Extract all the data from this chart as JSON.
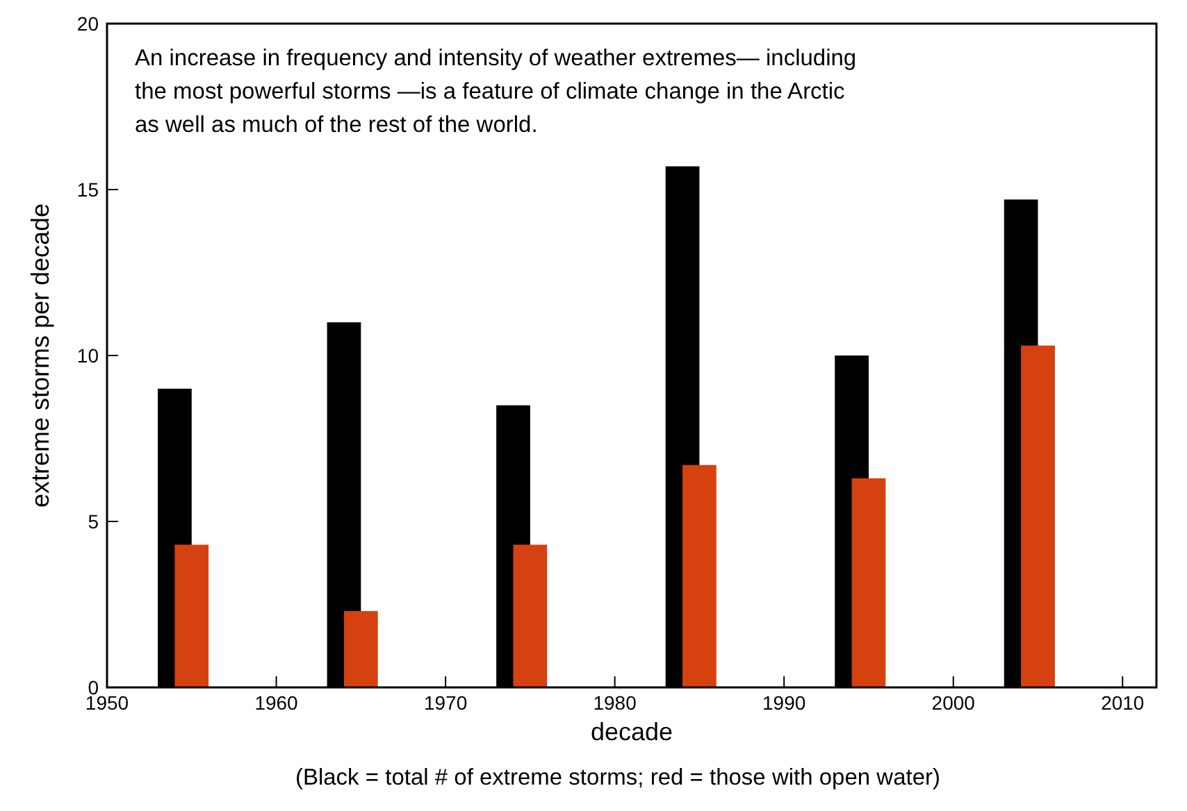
{
  "chart_data": {
    "type": "bar",
    "xlabel": "decade",
    "ylabel": "extreme storms per decade",
    "xlim": [
      1950,
      2012
    ],
    "xticks": [
      1950,
      1960,
      1970,
      1980,
      1990,
      2000,
      2010
    ],
    "ylim": [
      0,
      20
    ],
    "yticks": [
      0,
      5,
      10,
      15,
      20
    ],
    "grid": false,
    "series": [
      {
        "color": "#000000",
        "x": [
          1954,
          1964,
          1974,
          1984,
          1994,
          2004
        ],
        "values": [
          9.0,
          11.0,
          8.5,
          15.7,
          10.0,
          14.7
        ]
      },
      {
        "color": "#d5410f",
        "x": [
          1955,
          1965,
          1975,
          1985,
          1995,
          2005
        ],
        "values": [
          4.3,
          2.3,
          4.3,
          6.7,
          6.3,
          10.3
        ]
      }
    ],
    "annotations": [
      "An increase in frequency and intensity of weather extremes— including the most powerful storms —is a feature of climate change in the Arctic as well as much of the rest of the world.",
      "(Black = total # of extreme storms; red = those with open water)"
    ]
  }
}
